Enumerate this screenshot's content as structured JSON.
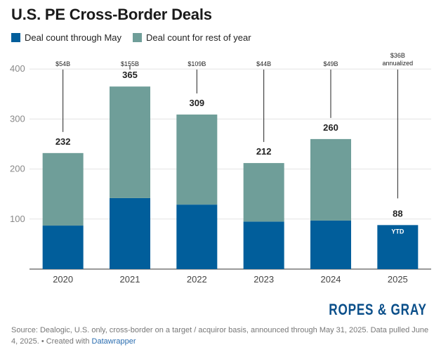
{
  "chart_data": {
    "type": "bar",
    "stacked": true,
    "title": "U.S. PE Cross-Border Deals",
    "categories": [
      "2020",
      "2021",
      "2022",
      "2023",
      "2024",
      "2025"
    ],
    "series": [
      {
        "name": "Deal count through May",
        "color": "#015e9b",
        "values": [
          87,
          142,
          129,
          95,
          97,
          88
        ]
      },
      {
        "name": "Deal count for rest of year",
        "color": "#6f9e99",
        "values": [
          145,
          223,
          180,
          117,
          163,
          0
        ]
      }
    ],
    "totals": [
      "232",
      "365",
      "309",
      "212",
      "260",
      "88"
    ],
    "value_annotations": [
      "$54B",
      "$155B",
      "$109B",
      "$44B",
      "$49B",
      "$36B"
    ],
    "value_annotation_sublabels": [
      "",
      "",
      "",
      "",
      "",
      "annualized"
    ],
    "bar_inner_labels": [
      "",
      "",
      "",
      "",
      "",
      "YTD"
    ],
    "y_ticks": [
      "100",
      "200",
      "300",
      "400"
    ],
    "ylim": [
      0,
      420
    ],
    "grid": true,
    "legend_position": "top-left"
  },
  "brand": {
    "name": "ROPES & GRAY",
    "color": "#0b4f8a"
  },
  "footer": {
    "source": "Source: Dealogic, U.S. only, cross-border on a target / acquiror basis, announced through May 31, 2025. Data pulled June 4, 2025. • Created with ",
    "link": "Datawrapper"
  }
}
